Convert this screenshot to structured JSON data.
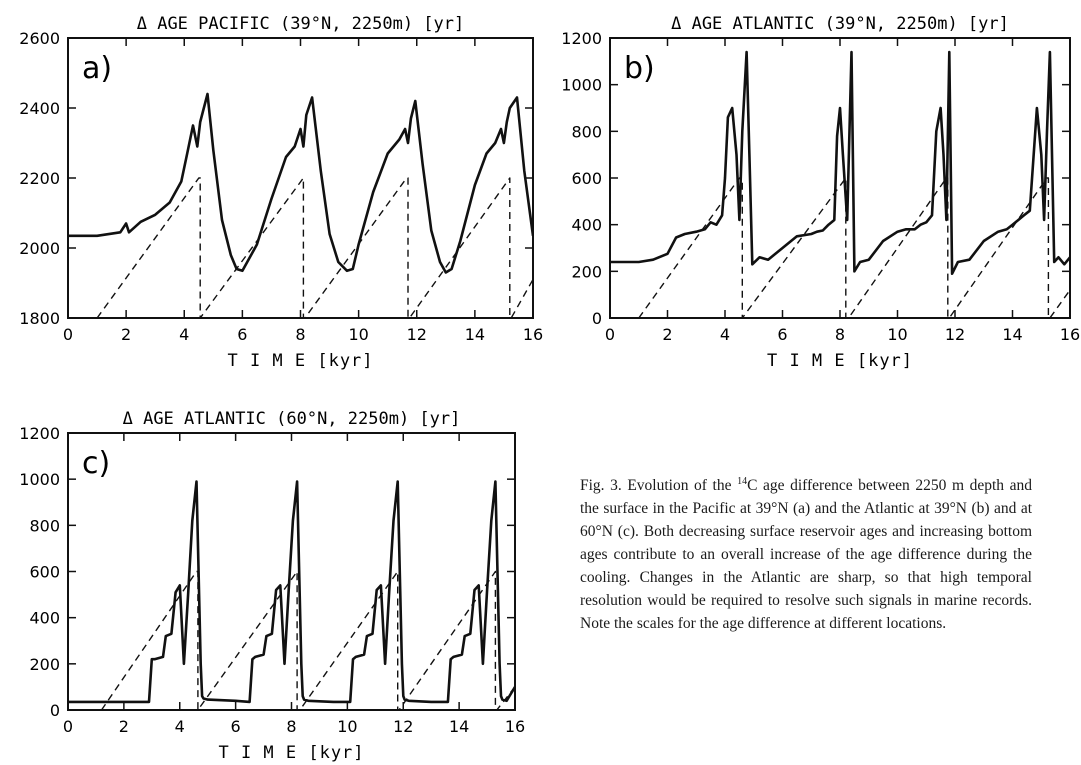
{
  "chart_data": [
    {
      "type": "line",
      "title": "Δ AGE PACIFIC (39°N, 2250m) [yr]",
      "panel_label": "a)",
      "xlabel": "T I M E [kyr]",
      "ylabel": "",
      "xlim": [
        0,
        16
      ],
      "ylim": [
        1800,
        2600
      ],
      "xticks": [
        "0",
        "2",
        "4",
        "6",
        "8",
        "10",
        "12",
        "14",
        "16"
      ],
      "yticks": [
        "1800",
        "2000",
        "2200",
        "2400",
        "2600"
      ],
      "series": [
        {
          "style": "solid",
          "x": [
            0,
            1,
            1.8,
            2,
            2.1,
            2.5,
            3,
            3.5,
            3.9,
            4.1,
            4.3,
            4.45,
            4.55,
            4.8,
            5,
            5.3,
            5.6,
            5.8,
            6,
            6.5,
            7,
            7.5,
            7.8,
            8.0,
            8.1,
            8.2,
            8.4,
            8.7,
            9,
            9.3,
            9.6,
            9.8,
            10,
            10.5,
            11,
            11.4,
            11.6,
            11.7,
            11.8,
            11.95,
            12.2,
            12.5,
            12.8,
            13.0,
            13.2,
            13.5,
            14,
            14.4,
            14.7,
            14.9,
            15.0,
            15.1,
            15.2,
            15.45,
            15.7,
            16
          ],
          "y": [
            2035,
            2035,
            2045,
            2070,
            2045,
            2075,
            2095,
            2130,
            2190,
            2270,
            2350,
            2290,
            2360,
            2440,
            2280,
            2080,
            1980,
            1940,
            1935,
            2010,
            2140,
            2260,
            2290,
            2340,
            2290,
            2380,
            2430,
            2220,
            2040,
            1960,
            1935,
            1940,
            2010,
            2160,
            2270,
            2310,
            2340,
            2300,
            2370,
            2420,
            2240,
            2050,
            1960,
            1930,
            1940,
            2020,
            2180,
            2270,
            2300,
            2340,
            2300,
            2360,
            2400,
            2430,
            2220,
            2035
          ]
        },
        {
          "style": "dashed",
          "x": [
            1,
            4.5,
            4.55,
            4.55,
            8.1,
            8.1,
            8.15,
            8.15,
            11.65,
            11.7,
            11.7,
            11.75,
            15.2,
            15.2,
            15.25,
            15.25,
            16
          ],
          "y": [
            1800,
            2200,
            2200,
            1800,
            2200,
            1800,
            1800,
            1800,
            2200,
            2200,
            1800,
            1800,
            2200,
            1800,
            1800,
            1800,
            1910
          ]
        }
      ]
    },
    {
      "type": "line",
      "title": "Δ AGE ATLANTIC (39°N, 2250m) [yr]",
      "panel_label": "b)",
      "xlabel": "T I M E [kyr]",
      "ylabel": "",
      "xlim": [
        0,
        16
      ],
      "ylim": [
        0,
        1200
      ],
      "xticks": [
        "0",
        "2",
        "4",
        "6",
        "8",
        "10",
        "12",
        "14",
        "16"
      ],
      "yticks": [
        "0",
        "200",
        "400",
        "600",
        "800",
        "1000",
        "1200"
      ],
      "series": [
        {
          "style": "solid",
          "x": [
            0,
            1,
            1.5,
            2,
            2.3,
            2.6,
            3,
            3.3,
            3.5,
            3.7,
            3.9,
            4.0,
            4.1,
            4.25,
            4.4,
            4.5,
            4.6,
            4.75,
            4.85,
            4.95,
            5.2,
            5.5,
            6,
            6.5,
            7,
            7.2,
            7.4,
            7.6,
            7.8,
            7.9,
            8.0,
            8.1,
            8.25,
            8.4,
            8.5,
            8.7,
            9,
            9.5,
            10,
            10.3,
            10.6,
            10.8,
            11.0,
            11.2,
            11.35,
            11.5,
            11.6,
            11.7,
            11.8,
            11.9,
            12.1,
            12.5,
            13,
            13.5,
            13.8,
            14.0,
            14.2,
            14.4,
            14.6,
            14.85,
            15.0,
            15.1,
            15.2,
            15.3,
            15.45,
            15.6,
            15.8,
            16
          ],
          "y": [
            240,
            240,
            250,
            275,
            345,
            360,
            370,
            380,
            410,
            400,
            440,
            600,
            860,
            900,
            700,
            420,
            800,
            1140,
            700,
            230,
            260,
            250,
            300,
            350,
            360,
            370,
            375,
            400,
            420,
            780,
            900,
            700,
            420,
            1140,
            200,
            240,
            250,
            330,
            370,
            380,
            380,
            400,
            410,
            440,
            800,
            900,
            700,
            420,
            1140,
            190,
            240,
            250,
            330,
            370,
            380,
            400,
            420,
            440,
            460,
            900,
            700,
            420,
            800,
            1140,
            240,
            260,
            230,
            260
          ]
        },
        {
          "style": "dashed",
          "x": [
            1,
            4.5,
            4.6,
            4.6,
            8.2,
            8.2,
            8.3,
            8.3,
            11.7,
            11.75,
            11.75,
            11.8,
            15.2,
            15.25,
            15.25,
            15.3,
            16
          ],
          "y": [
            0,
            600,
            600,
            0,
            600,
            0,
            0,
            0,
            600,
            600,
            0,
            0,
            600,
            600,
            0,
            0,
            120
          ]
        }
      ]
    },
    {
      "type": "line",
      "title": "Δ AGE ATLANTIC (60°N, 2250m) [yr]",
      "panel_label": "c)",
      "xlabel": "T I M E [kyr]",
      "ylabel": "",
      "xlim": [
        0,
        16
      ],
      "ylim": [
        0,
        1200
      ],
      "xticks": [
        "0",
        "2",
        "4",
        "6",
        "8",
        "10",
        "12",
        "14",
        "16"
      ],
      "yticks": [
        "0",
        "200",
        "400",
        "600",
        "800",
        "1000",
        "1200"
      ],
      "series": [
        {
          "style": "solid",
          "x": [
            0,
            1,
            2,
            2.9,
            3.0,
            3.1,
            3.4,
            3.5,
            3.7,
            3.85,
            4.0,
            4.15,
            4.3,
            4.45,
            4.6,
            4.75,
            4.8,
            4.85,
            5.0,
            6,
            6.5,
            6.6,
            6.7,
            7.0,
            7.1,
            7.3,
            7.45,
            7.6,
            7.75,
            7.9,
            8.05,
            8.2,
            8.35,
            8.4,
            8.45,
            8.6,
            9.5,
            10.1,
            10.2,
            10.3,
            10.6,
            10.7,
            10.9,
            11.05,
            11.2,
            11.35,
            11.5,
            11.65,
            11.8,
            11.95,
            12.0,
            12.05,
            12.2,
            13,
            13.6,
            13.7,
            13.8,
            14.1,
            14.2,
            14.4,
            14.55,
            14.7,
            14.85,
            15.0,
            15.15,
            15.3,
            15.45,
            15.5,
            15.55,
            15.7,
            16
          ],
          "y": [
            35,
            35,
            35,
            35,
            220,
            220,
            230,
            320,
            330,
            510,
            540,
            200,
            500,
            820,
            990,
            200,
            60,
            50,
            45,
            40,
            35,
            220,
            230,
            240,
            320,
            330,
            520,
            540,
            200,
            520,
            820,
            990,
            200,
            60,
            45,
            40,
            35,
            35,
            220,
            230,
            240,
            320,
            330,
            520,
            540,
            200,
            520,
            820,
            990,
            200,
            60,
            45,
            40,
            35,
            35,
            220,
            230,
            240,
            320,
            330,
            520,
            540,
            200,
            520,
            820,
            990,
            200,
            60,
            45,
            40,
            100
          ]
        },
        {
          "style": "dashed",
          "x": [
            1.2,
            4.6,
            4.65,
            4.65,
            8.2,
            8.2,
            8.3,
            8.3,
            11.8,
            11.8,
            11.85,
            11.85,
            15.3,
            15.3,
            15.35,
            15.35,
            16
          ],
          "y": [
            0,
            600,
            600,
            0,
            600,
            0,
            0,
            0,
            600,
            0,
            0,
            0,
            600,
            0,
            0,
            0,
            100
          ]
        }
      ]
    }
  ],
  "caption": {
    "fig": "Fig. 3.",
    "text_a": " Evolution of the ",
    "sup": "14",
    "text_b": "C age difference between 2250 m depth and the surface in the Pacific at 39°N (a) and the Atlantic at 39°N (b) and at 60°N (c). Both decreasing surface reservoir ages and increasing bottom ages contribute to an overall increase of the age difference during the cooling. Changes in the Atlantic are sharp, so that high temporal resolution would be required to resolve such signals in marine records. Note the scales for the age difference at different locations."
  }
}
